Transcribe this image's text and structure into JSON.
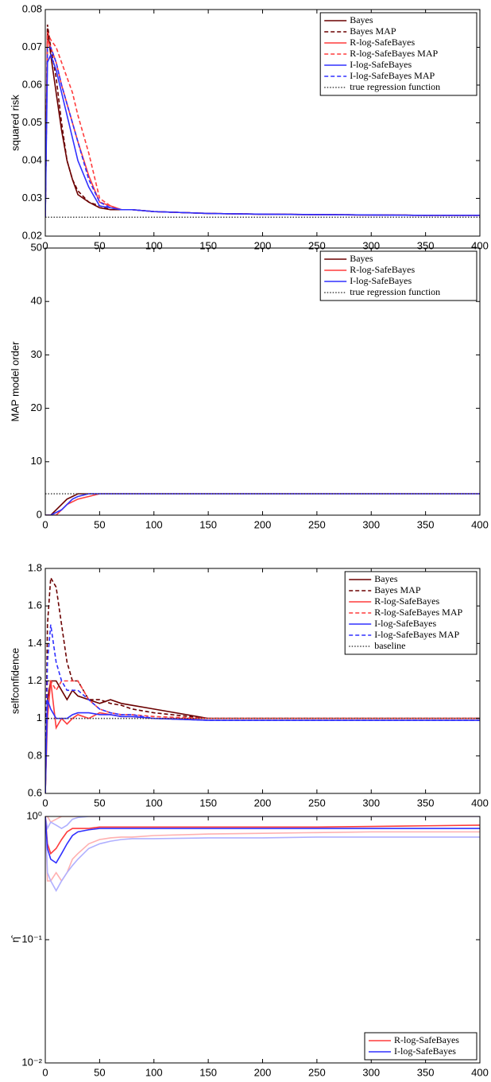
{
  "chart_data": [
    {
      "type": "line",
      "ylabel": "squared risk",
      "x": [
        0,
        2,
        5,
        10,
        15,
        20,
        25,
        30,
        40,
        50,
        60,
        70,
        80,
        100,
        150,
        200,
        250,
        300,
        350,
        400
      ],
      "xlim": [
        0,
        400
      ],
      "xticks": [
        0,
        50,
        100,
        150,
        200,
        250,
        300,
        350,
        400
      ],
      "ylim": [
        0.02,
        0.08
      ],
      "yticks": [
        0.02,
        0.03,
        0.04,
        0.05,
        0.06,
        0.07,
        0.08
      ],
      "legend": "upper right",
      "series": [
        {
          "name": "Bayes",
          "color": "#6b0000",
          "style": "solid",
          "values": [
            0.025,
            0.075,
            0.068,
            0.058,
            0.048,
            0.04,
            0.035,
            0.031,
            0.029,
            0.0275,
            0.027,
            0.027,
            0.027,
            0.0265,
            0.026,
            0.0258,
            0.0257,
            0.0256,
            0.0255,
            0.0255
          ]
        },
        {
          "name": "Bayes MAP",
          "color": "#6b0000",
          "style": "dashed",
          "values": [
            0.025,
            0.076,
            0.07,
            0.062,
            0.05,
            0.04,
            0.035,
            0.032,
            0.029,
            0.028,
            0.027,
            0.027,
            0.027,
            0.0265,
            0.026,
            0.0258,
            0.0257,
            0.0256,
            0.0255,
            0.0255
          ]
        },
        {
          "name": "R-log-SafeBayes",
          "color": "#ff3c3c",
          "style": "solid",
          "values": [
            0.025,
            0.072,
            0.07,
            0.066,
            0.06,
            0.055,
            0.05,
            0.045,
            0.036,
            0.029,
            0.028,
            0.027,
            0.027,
            0.0265,
            0.026,
            0.0258,
            0.0257,
            0.0256,
            0.0255,
            0.0255
          ]
        },
        {
          "name": "R-log-SafeBayes MAP",
          "color": "#ff3c3c",
          "style": "dashed",
          "values": [
            0.025,
            0.074,
            0.072,
            0.07,
            0.066,
            0.062,
            0.058,
            0.052,
            0.042,
            0.03,
            0.028,
            0.027,
            0.027,
            0.0265,
            0.026,
            0.0258,
            0.0257,
            0.0256,
            0.0255,
            0.0255
          ]
        },
        {
          "name": "I-log-SafeBayes",
          "color": "#3030ff",
          "style": "solid",
          "values": [
            0.025,
            0.066,
            0.068,
            0.064,
            0.058,
            0.052,
            0.046,
            0.04,
            0.033,
            0.028,
            0.0275,
            0.027,
            0.027,
            0.0265,
            0.026,
            0.0258,
            0.0257,
            0.0256,
            0.0255,
            0.0255
          ]
        },
        {
          "name": "I-log-SafeBayes MAP",
          "color": "#3030ff",
          "style": "dashed",
          "values": [
            0.025,
            0.07,
            0.07,
            0.066,
            0.06,
            0.055,
            0.05,
            0.045,
            0.035,
            0.029,
            0.0275,
            0.027,
            0.027,
            0.0265,
            0.026,
            0.0258,
            0.0257,
            0.0256,
            0.0255,
            0.0255
          ]
        },
        {
          "name": "true regression function",
          "color": "#444444",
          "style": "dotted",
          "values": [
            0.025,
            0.025,
            0.025,
            0.025,
            0.025,
            0.025,
            0.025,
            0.025,
            0.025,
            0.025,
            0.025,
            0.025,
            0.025,
            0.025,
            0.025,
            0.025,
            0.025,
            0.025,
            0.025,
            0.025
          ]
        }
      ]
    },
    {
      "type": "line",
      "ylabel": "MAP model order",
      "x": [
        0,
        2,
        5,
        10,
        15,
        20,
        25,
        30,
        40,
        50,
        60,
        70,
        80,
        100,
        150,
        200,
        250,
        300,
        350,
        400
      ],
      "xlim": [
        0,
        400
      ],
      "xticks": [
        0,
        50,
        100,
        150,
        200,
        250,
        300,
        350,
        400
      ],
      "ylim": [
        0,
        50
      ],
      "yticks": [
        0,
        10,
        20,
        30,
        40,
        50
      ],
      "legend": "upper right",
      "series": [
        {
          "name": "Bayes",
          "color": "#6b0000",
          "style": "solid",
          "values": [
            0,
            0,
            0,
            1,
            2,
            3,
            3.5,
            4,
            4,
            4,
            4,
            4,
            4,
            4,
            4,
            4,
            4,
            4,
            4,
            4
          ]
        },
        {
          "name": "R-log-SafeBayes",
          "color": "#ff3c3c",
          "style": "solid",
          "values": [
            0,
            0,
            0,
            0,
            1,
            2,
            2.5,
            3,
            3.5,
            4,
            4,
            4,
            4,
            4,
            4,
            4,
            4,
            4,
            4,
            4
          ]
        },
        {
          "name": "I-log-SafeBayes",
          "color": "#3030ff",
          "style": "solid",
          "values": [
            0,
            0,
            0,
            0.5,
            1,
            2,
            3,
            3.5,
            4,
            4,
            4,
            4,
            4,
            4,
            4,
            4,
            4,
            4,
            4,
            4
          ]
        },
        {
          "name": "true regression function",
          "color": "#444444",
          "style": "dotted",
          "values": [
            4,
            4,
            4,
            4,
            4,
            4,
            4,
            4,
            4,
            4,
            4,
            4,
            4,
            4,
            4,
            4,
            4,
            4,
            4,
            4
          ]
        }
      ]
    },
    {
      "type": "line",
      "ylabel": "selfconfidence",
      "x": [
        0,
        2,
        5,
        10,
        15,
        20,
        25,
        30,
        40,
        50,
        60,
        70,
        80,
        100,
        150,
        200,
        250,
        300,
        350,
        400
      ],
      "xlim": [
        0,
        400
      ],
      "xticks": [
        0,
        50,
        100,
        150,
        200,
        250,
        300,
        350,
        400
      ],
      "ylim": [
        0.6,
        1.8
      ],
      "yticks": [
        0.6,
        0.8,
        1,
        1.2,
        1.4,
        1.6,
        1.8
      ],
      "legend": "upper right",
      "series": [
        {
          "name": "Bayes",
          "color": "#6b0000",
          "style": "solid",
          "values": [
            0.6,
            1.1,
            1.2,
            1.2,
            1.15,
            1.1,
            1.15,
            1.12,
            1.1,
            1.08,
            1.1,
            1.08,
            1.07,
            1.05,
            1.0,
            1.0,
            1.0,
            1.0,
            1.0,
            1.0
          ]
        },
        {
          "name": "Bayes MAP",
          "color": "#6b0000",
          "style": "dashed",
          "values": [
            0.6,
            1.5,
            1.75,
            1.7,
            1.5,
            1.3,
            1.2,
            1.2,
            1.1,
            1.1,
            1.08,
            1.07,
            1.05,
            1.03,
            1.0,
            1.0,
            1.0,
            1.0,
            1.0,
            1.0
          ]
        },
        {
          "name": "R-log-SafeBayes",
          "color": "#ff3c3c",
          "style": "solid",
          "values": [
            0.6,
            1.0,
            1.2,
            0.95,
            1.0,
            0.97,
            1.0,
            1.02,
            1.0,
            1.03,
            1.02,
            1.01,
            1.01,
            1.0,
            1.0,
            1.0,
            1.0,
            1.0,
            1.0,
            1.0
          ]
        },
        {
          "name": "R-log-SafeBayes MAP",
          "color": "#ff3c3c",
          "style": "dashed",
          "values": [
            0.6,
            1.2,
            1.2,
            1.15,
            1.2,
            1.2,
            1.2,
            1.2,
            1.1,
            1.05,
            1.03,
            1.02,
            1.02,
            1.01,
            1.0,
            1.0,
            1.0,
            1.0,
            1.0,
            1.0
          ]
        },
        {
          "name": "I-log-SafeBayes",
          "color": "#3030ff",
          "style": "solid",
          "values": [
            0.6,
            1.1,
            1.05,
            1.0,
            1.0,
            1.0,
            1.02,
            1.03,
            1.03,
            1.02,
            1.02,
            1.01,
            1.01,
            1.0,
            0.99,
            0.99,
            0.99,
            0.99,
            0.99,
            0.99
          ]
        },
        {
          "name": "I-log-SafeBayes MAP",
          "color": "#3030ff",
          "style": "dashed",
          "values": [
            0.6,
            1.3,
            1.5,
            1.3,
            1.2,
            1.15,
            1.15,
            1.15,
            1.1,
            1.05,
            1.03,
            1.02,
            1.02,
            1.0,
            0.99,
            0.99,
            0.99,
            0.99,
            0.99,
            0.99
          ]
        },
        {
          "name": "baseline",
          "color": "#444444",
          "style": "dotted",
          "values": [
            1,
            1,
            1,
            1,
            1,
            1,
            1,
            1,
            1,
            1,
            1,
            1,
            1,
            1,
            1,
            1,
            1,
            1,
            1,
            1
          ]
        }
      ]
    },
    {
      "type": "line",
      "ylabel": "η̂",
      "log_y": true,
      "x": [
        0,
        2,
        5,
        10,
        15,
        20,
        25,
        30,
        40,
        50,
        60,
        70,
        80,
        100,
        150,
        200,
        250,
        300,
        350,
        400
      ],
      "xlim": [
        0,
        400
      ],
      "xticks": [
        0,
        50,
        100,
        150,
        200,
        250,
        300,
        350,
        400
      ],
      "ylim": [
        0.01,
        1
      ],
      "yticks": [
        {
          "value": 0.01,
          "label": "10⁻²"
        },
        {
          "value": 0.1,
          "label": "10⁻¹"
        },
        {
          "value": 1,
          "label": "10⁰"
        }
      ],
      "legend": "lower right",
      "series": [
        {
          "color": "#ffb0b0",
          "style": "solid",
          "values": [
            1,
            1,
            0.9,
            0.95,
            1,
            1,
            1,
            1,
            1,
            1,
            1,
            1,
            1,
            1,
            1,
            1,
            1,
            1,
            1,
            1
          ]
        },
        {
          "color": "#ffb0b0",
          "style": "solid",
          "values": [
            1,
            0.3,
            0.3,
            0.35,
            0.3,
            0.35,
            0.45,
            0.5,
            0.6,
            0.65,
            0.67,
            0.68,
            0.68,
            0.7,
            0.72,
            0.73,
            0.74,
            0.75,
            0.75,
            0.75
          ]
        },
        {
          "color": "#b0b0ff",
          "style": "solid",
          "values": [
            1,
            0.8,
            0.9,
            0.85,
            0.8,
            0.85,
            0.95,
            0.98,
            1,
            1,
            1,
            1,
            1,
            1,
            1,
            1,
            1,
            1,
            1,
            1
          ]
        },
        {
          "color": "#b0b0ff",
          "style": "solid",
          "values": [
            1,
            0.35,
            0.3,
            0.25,
            0.3,
            0.35,
            0.4,
            0.45,
            0.55,
            0.6,
            0.63,
            0.65,
            0.66,
            0.66,
            0.67,
            0.67,
            0.68,
            0.68,
            0.68,
            0.68
          ]
        },
        {
          "name": "R-log-SafeBayes",
          "color": "#ff3c3c",
          "style": "solid",
          "values": [
            1,
            0.6,
            0.5,
            0.55,
            0.65,
            0.75,
            0.8,
            0.8,
            0.8,
            0.82,
            0.82,
            0.82,
            0.82,
            0.82,
            0.82,
            0.82,
            0.82,
            0.83,
            0.84,
            0.85
          ]
        },
        {
          "name": "I-log-SafeBayes",
          "color": "#3030ff",
          "style": "solid",
          "values": [
            1,
            0.55,
            0.45,
            0.42,
            0.5,
            0.6,
            0.7,
            0.75,
            0.78,
            0.8,
            0.8,
            0.8,
            0.8,
            0.8,
            0.8,
            0.8,
            0.8,
            0.8,
            0.8,
            0.8
          ]
        }
      ]
    }
  ]
}
